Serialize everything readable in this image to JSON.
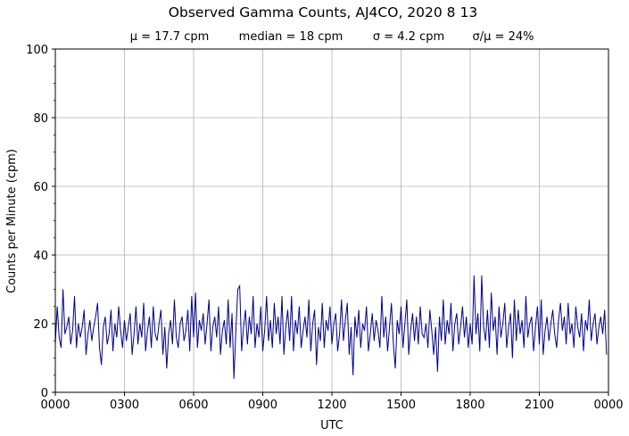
{
  "chart_data": {
    "type": "line",
    "title": "Observed Gamma Counts, AJ4CO, 2020 8 13",
    "subtitle": [
      "μ = 17.7 cpm",
      "median = 18 cpm",
      "σ = 4.2 cpm",
      "σ/μ = 24%"
    ],
    "xlabel": "UTC",
    "ylabel": "Counts per Minute (cpm)",
    "xlim_minutes": [
      0,
      1440
    ],
    "ylim": [
      0,
      100
    ],
    "x_ticks_minutes": [
      0,
      180,
      360,
      540,
      720,
      900,
      1080,
      1260,
      1440
    ],
    "x_tick_labels": [
      "0000",
      "0300",
      "0600",
      "0900",
      "1200",
      "1500",
      "1800",
      "2100",
      "0000"
    ],
    "y_ticks": [
      0,
      20,
      40,
      60,
      80,
      100
    ],
    "y_tick_labels": [
      "0",
      "20",
      "40",
      "60",
      "80",
      "100"
    ],
    "y_minor_step": 5,
    "grid": true,
    "line_color": "#00008b",
    "x_start_minutes": 0,
    "x_step_minutes": 5,
    "values": [
      14,
      25,
      16,
      13,
      30,
      17,
      19,
      22,
      14,
      18,
      28,
      13,
      20,
      16,
      19,
      24,
      11,
      17,
      21,
      15,
      19,
      22,
      26,
      13,
      8,
      19,
      22,
      14,
      17,
      24,
      12,
      20,
      16,
      25,
      18,
      13,
      21,
      15,
      19,
      23,
      11,
      17,
      25,
      14,
      20,
      16,
      26,
      12,
      18,
      22,
      13,
      25,
      17,
      15,
      20,
      24,
      11,
      19,
      7,
      17,
      21,
      14,
      27,
      16,
      13,
      20,
      22,
      15,
      18,
      24,
      12,
      28,
      16,
      29,
      13,
      21,
      18,
      23,
      14,
      20,
      27,
      12,
      19,
      22,
      16,
      25,
      11,
      18,
      21,
      14,
      27,
      13,
      23,
      4,
      18,
      30,
      31,
      12,
      19,
      24,
      14,
      22,
      17,
      28,
      13,
      20,
      16,
      25,
      12,
      18,
      28,
      15,
      21,
      13,
      26,
      17,
      22,
      14,
      28,
      11,
      19,
      24,
      15,
      28,
      12,
      21,
      17,
      25,
      13,
      18,
      22,
      16,
      27,
      12,
      20,
      24,
      8,
      19,
      15,
      26,
      13,
      21,
      18,
      25,
      14,
      20,
      23,
      12,
      17,
      27,
      15,
      21,
      26,
      11,
      19,
      5,
      22,
      16,
      24,
      13,
      20,
      18,
      25,
      12,
      17,
      23,
      15,
      21,
      18,
      13,
      28,
      16,
      22,
      12,
      19,
      26,
      14,
      7,
      21,
      17,
      25,
      13,
      20,
      27,
      11,
      18,
      23,
      15,
      22,
      14,
      25,
      17,
      16,
      20,
      13,
      24,
      18,
      11,
      19,
      6,
      22,
      15,
      27,
      14,
      21,
      17,
      26,
      12,
      20,
      23,
      14,
      19,
      25,
      16,
      22,
      13,
      20,
      14,
      34,
      17,
      23,
      12,
      34,
      19,
      15,
      24,
      13,
      29,
      18,
      22,
      11,
      25,
      16,
      20,
      26,
      13,
      19,
      23,
      10,
      27,
      15,
      24,
      17,
      21,
      13,
      28,
      16,
      20,
      22,
      12,
      19,
      25,
      14,
      27,
      11,
      18,
      22,
      15,
      20,
      24,
      17,
      13,
      21,
      26,
      18,
      22,
      14,
      26,
      17,
      20,
      13,
      25,
      19,
      16,
      23,
      12,
      21,
      18,
      27,
      15,
      20,
      23,
      14,
      19,
      22,
      17,
      24,
      11
    ]
  }
}
